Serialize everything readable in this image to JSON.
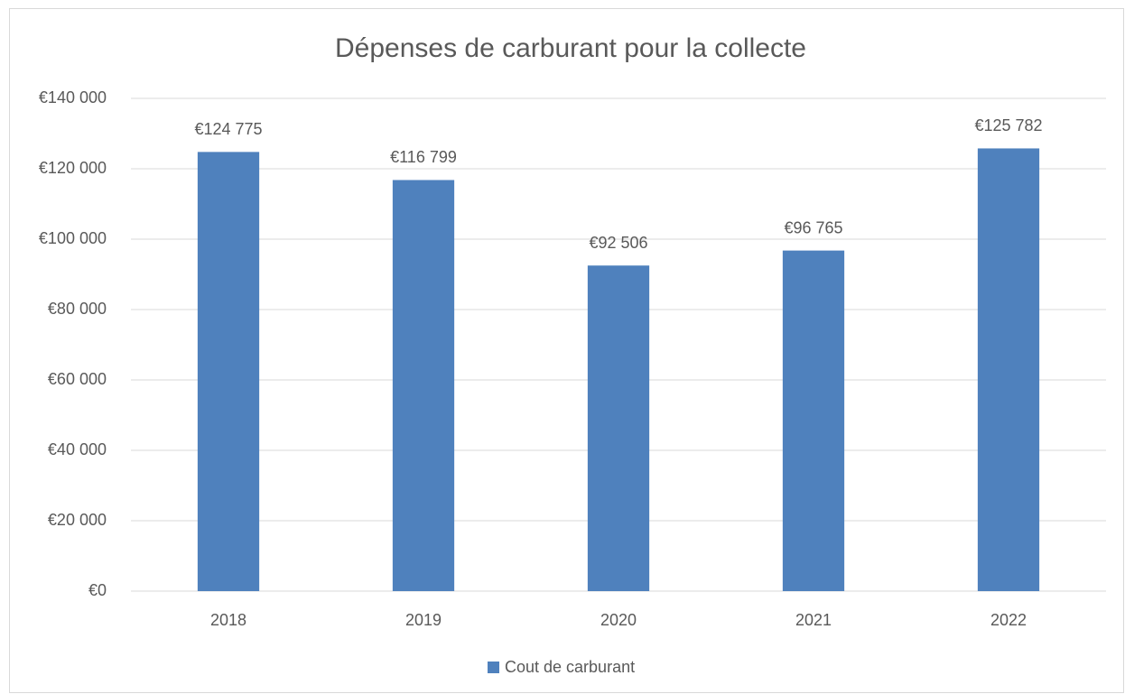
{
  "chart_data": {
    "type": "bar",
    "title": "Dépenses de carburant pour la collecte",
    "categories": [
      "2018",
      "2019",
      "2020",
      "2021",
      "2022"
    ],
    "series": [
      {
        "name": "Cout de carburant",
        "color": "#4f81bd",
        "values": [
          124775,
          116799,
          92506,
          96765,
          125782
        ],
        "value_labels": [
          "€124 775",
          "€116 799",
          "€92 506",
          "€96 765",
          "€125 782"
        ]
      }
    ],
    "ylim": [
      0,
      140000
    ],
    "yticks": [
      {
        "value": 0,
        "label": "€0"
      },
      {
        "value": 20000,
        "label": "€20 000"
      },
      {
        "value": 40000,
        "label": "€40 000"
      },
      {
        "value": 60000,
        "label": "€60 000"
      },
      {
        "value": 80000,
        "label": "€80 000"
      },
      {
        "value": 100000,
        "label": "€100 000"
      },
      {
        "value": 120000,
        "label": "€120 000"
      },
      {
        "value": 140000,
        "label": "€140 000"
      }
    ],
    "grid": true,
    "legend": "bottom"
  }
}
